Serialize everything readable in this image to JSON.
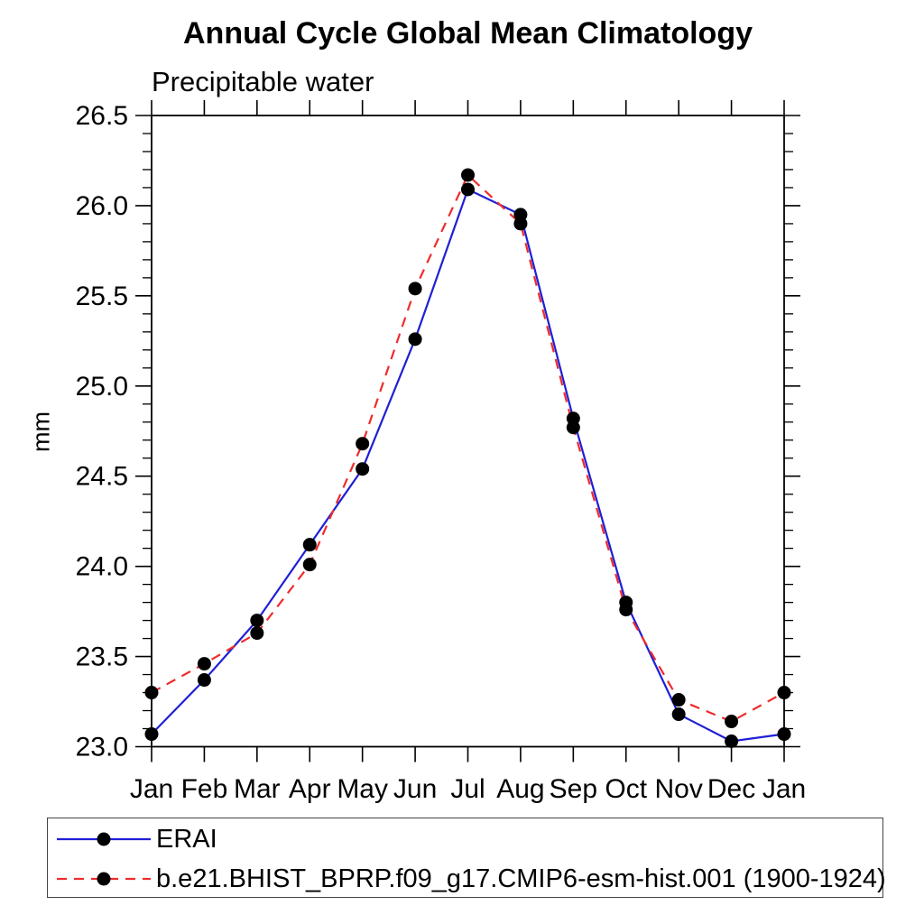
{
  "page": {
    "background_color": "#ffffff",
    "text_color": "#000000"
  },
  "chart_data": {
    "type": "line",
    "title": "Annual Cycle Global Mean Climatology",
    "subtitle": "Precipitable water",
    "ylabel": "mm",
    "xlabel": "",
    "x_labels": [
      "Jan",
      "Feb",
      "Mar",
      "Apr",
      "May",
      "Jun",
      "Jul",
      "Aug",
      "Sep",
      "Oct",
      "Nov",
      "Dec",
      "Jan"
    ],
    "ylim": [
      23.0,
      26.5
    ],
    "ytick_step": 0.5,
    "yminor_step": 0.1,
    "grid": false,
    "legend_position": "bottom",
    "axis_color": "#000000",
    "marker_color": "#000000",
    "series": [
      {
        "name": "ERAI",
        "color": "#1f1fd6",
        "style": "solid",
        "marker": "circle",
        "values": [
          23.07,
          23.37,
          23.7,
          24.12,
          24.54,
          25.26,
          26.09,
          25.95,
          24.82,
          23.8,
          23.18,
          23.03,
          23.07
        ]
      },
      {
        "name": "b.e21.BHIST_BPRP.f09_g17.CMIP6-esm-hist.001 (1900-1924)",
        "color": "#ee2c2c",
        "style": "dashed",
        "marker": "circle",
        "values": [
          23.3,
          23.46,
          23.63,
          24.01,
          24.68,
          25.54,
          26.17,
          25.9,
          24.77,
          23.76,
          23.26,
          23.14,
          23.3
        ]
      }
    ]
  }
}
